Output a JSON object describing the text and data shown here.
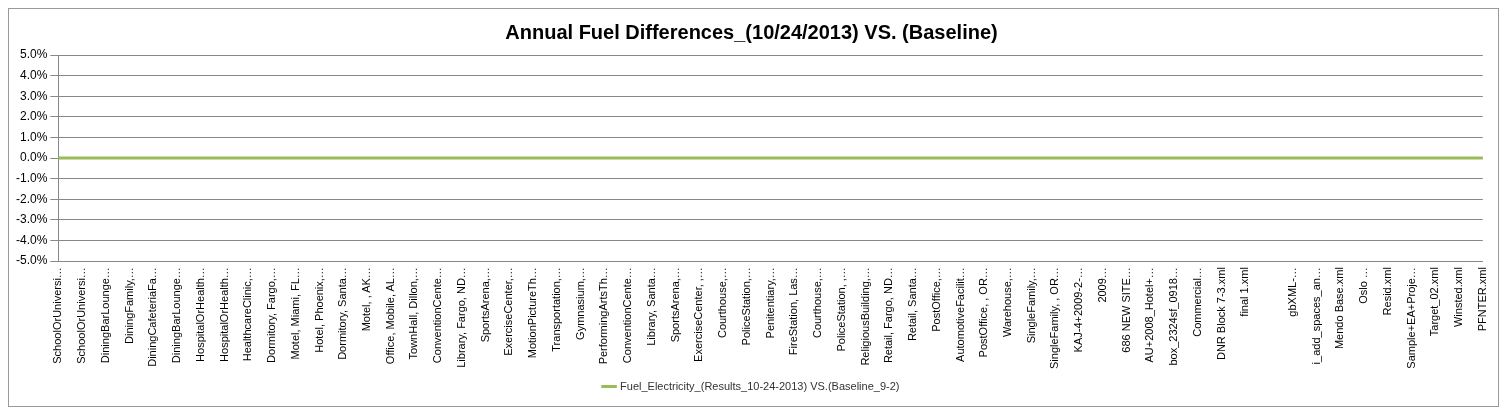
{
  "chart_data": {
    "type": "line",
    "title": "Annual Fuel Differences_(10/24/2013) VS. (Baseline)",
    "categories": [
      "SchoolOrUniversi…",
      "SchoolOrUniversi…",
      "DiningBarLounge…",
      "DiningFamily,…",
      "DiningCafeteriaFa…",
      "DiningBarLounge…",
      "HospitalOrHealth…",
      "HospitalOrHealth…",
      "HealthcareClinic,…",
      "Dormitory, Fargo,…",
      "Motel, Miami, FL…",
      "Hotel, Phoenix,…",
      "Dormitory, Santa…",
      "Motel, , AK…",
      "Office, Mobile, AL…",
      "TownHall, Dillon,…",
      "ConventionCente…",
      "Library, Fargo, ND…",
      "SportsArena,…",
      "ExerciseCenter,…",
      "MotionPictureTh…",
      "Transportation,…",
      "Gymnasium,…",
      "PerformingArtsTh…",
      "ConventionCente…",
      "Library, Santa…",
      "SportsArena,…",
      "ExerciseCenter, ,…",
      "Courthouse,…",
      "PoliceStation,…",
      "Penitentiary,…",
      "FireStation, Las…",
      "Courthouse,…",
      "PoliceStation, ,…",
      "ReligiousBuilding,…",
      "Retail, Fargo, ND…",
      "Retail, Santa…",
      "PostOffice,…",
      "AutomotiveFacilit…",
      "PostOffice, , OR…",
      "Warehouse,…",
      "SingleFamily,…",
      "SingleFamily, , OR…",
      "KAJ-4+2009-2-…",
      "2009…",
      "686 NEW SITE…",
      "AU+2008_Hotel+…",
      "box_2324sf_0918…",
      "Commercial…",
      "DNR Block 7-3.xml",
      "final 1.xml",
      null,
      "gbXML-…",
      "i_add_spaces_an…",
      "Mendo Base.xml",
      "Oslo …",
      "Resid.xml",
      "Sample+EA+Proje…",
      "Target_02.xml",
      "Winsted.xml",
      "PFNTER.xml"
    ],
    "series": [
      {
        "name": "Fuel_Electricity_(Results_10-24-2013) VS.(Baseline_9-2)",
        "color": "#9bbb59",
        "values": [
          0,
          0,
          0,
          0,
          0,
          0,
          0,
          0,
          0,
          0,
          0,
          0,
          0,
          0,
          0,
          0,
          0,
          0,
          0,
          0,
          0,
          0,
          0,
          0,
          0,
          0,
          0,
          0,
          0,
          0,
          0,
          0,
          0,
          0,
          0,
          0,
          0,
          0,
          0,
          0,
          0,
          0,
          0,
          0,
          0,
          0,
          0,
          0,
          0,
          0,
          0,
          0,
          0,
          0,
          0,
          0,
          0,
          0,
          0,
          0,
          0
        ]
      }
    ],
    "ylim": [
      -0.05,
      0.05
    ],
    "yticks": [
      {
        "value": -0.05,
        "label": "-5.0%"
      },
      {
        "value": -0.04,
        "label": "-4.0%"
      },
      {
        "value": -0.03,
        "label": "-3.0%"
      },
      {
        "value": -0.02,
        "label": "-2.0%"
      },
      {
        "value": -0.01,
        "label": "-1.0%"
      },
      {
        "value": 0,
        "label": "0.0%"
      },
      {
        "value": 0.01,
        "label": "1.0%"
      },
      {
        "value": 0.02,
        "label": "2.0%"
      },
      {
        "value": 0.03,
        "label": "3.0%"
      },
      {
        "value": 0.04,
        "label": "4.0%"
      },
      {
        "value": 0.05,
        "label": "5.0%"
      }
    ],
    "grid": "y",
    "legend": "bottom",
    "marker": "none",
    "line_style": "solid"
  }
}
